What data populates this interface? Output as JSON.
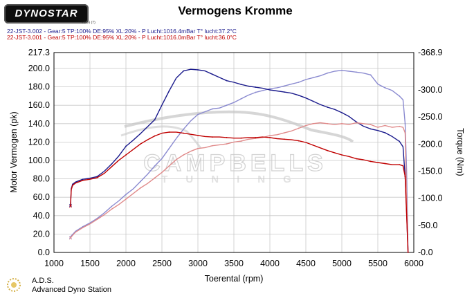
{
  "header": {
    "logo": "DYNOSTAR",
    "logo_sub": "v1.36 (7)",
    "title": "Vermogens Kromme",
    "run1": "22-JST-3.002 - Gear:5 TP:100% DE:95% XL:20%   - P Lucht:1016.4mBar T° lucht:37.2°C",
    "run2": "22-JST-3.001 - Gear:5 TP:100% DE:95% XL:20%   - P Lucht:1016.0mBar T° lucht:36.0°C"
  },
  "watermark": {
    "line1": "CAMPBELLS",
    "line2": "TUNING"
  },
  "footer": {
    "name": "A.D.S.",
    "desc": "Advanced Dyno Station"
  },
  "colors": {
    "run1": "#1a1a8c",
    "run2": "#c00000",
    "run1_light": "#8a8ad0",
    "run2_light": "#e08a8a",
    "grid": "#c8c8c8"
  },
  "chart_data": {
    "type": "line",
    "title": "Vermogens Kromme",
    "xlabel": "Toerental (rpm)",
    "ylabel": "Motor Vermogen (pk)",
    "y2label": "Torque (Nm)",
    "xlim": [
      1000,
      6000
    ],
    "ylim": [
      0,
      217.3
    ],
    "y2lim": [
      0,
      368.9
    ],
    "x_ticks": [
      "1000",
      "1500",
      "2000",
      "2500",
      "3000",
      "3500",
      "4000",
      "4500",
      "5000",
      "5500",
      "6000"
    ],
    "y_ticks": [
      "0.0",
      "20.0",
      "40.0",
      "60.0",
      "80.0",
      "100.0",
      "120.0",
      "140.0",
      "160.0",
      "180.0",
      "200.0",
      "217.3"
    ],
    "y2_ticks": [
      "0.0",
      "50.0",
      "100.0",
      "150.0",
      "200.0",
      "250.0",
      "300.0",
      "368.9"
    ],
    "grid": true,
    "series": [
      {
        "name": "22-JST-3.002",
        "kind": "power",
        "axis": "left",
        "x": [
          1230,
          1300,
          1400,
          1500,
          1600,
          1700,
          1800,
          1900,
          2000,
          2100,
          2200,
          2300,
          2400,
          2500,
          2600,
          2700,
          2800,
          2900,
          3000,
          3100,
          3200,
          3300,
          3400,
          3500,
          3600,
          3700,
          3800,
          3900,
          4000,
          4100,
          4200,
          4300,
          4400,
          4500,
          4600,
          4700,
          4800,
          4900,
          5000,
          5100,
          5200,
          5300,
          5400,
          5500,
          5600,
          5700,
          5800,
          5850,
          5880,
          5900,
          5920
        ],
        "y": [
          17,
          23,
          28,
          32,
          37,
          43,
          50,
          56,
          63,
          69,
          77,
          85,
          94,
          102,
          113,
          124,
          134,
          143,
          150,
          153,
          156,
          157,
          160,
          163,
          167,
          171,
          174,
          176,
          178,
          179,
          181,
          183,
          185,
          188,
          190,
          192,
          195,
          197,
          198,
          197,
          196,
          195,
          193,
          183,
          179,
          176,
          170,
          166,
          140,
          90,
          0
        ]
      },
      {
        "name": "22-JST-3.002",
        "kind": "torque",
        "axis": "right",
        "x": [
          1230,
          1240,
          1260,
          1300,
          1400,
          1500,
          1600,
          1700,
          1800,
          1900,
          2000,
          2100,
          2200,
          2300,
          2400,
          2500,
          2600,
          2700,
          2800,
          2900,
          3000,
          3100,
          3200,
          3300,
          3400,
          3500,
          3600,
          3700,
          3800,
          3900,
          4000,
          4100,
          4200,
          4300,
          4400,
          4500,
          4600,
          4700,
          4800,
          4900,
          5000,
          5100,
          5200,
          5300,
          5400,
          5500,
          5600,
          5700,
          5800,
          5850,
          5880,
          5900,
          5920
        ],
        "y": [
          88,
          118,
          126,
          130,
          135,
          137,
          140,
          150,
          163,
          178,
          196,
          207,
          219,
          232,
          245,
          272,
          298,
          322,
          335,
          338,
          337,
          335,
          329,
          323,
          317,
          314,
          310,
          307,
          305,
          303,
          300,
          298,
          296,
          294,
          290,
          285,
          279,
          273,
          268,
          264,
          258,
          251,
          241,
          233,
          228,
          225,
          221,
          214,
          205,
          195,
          140,
          75,
          0
        ]
      },
      {
        "name": "22-JST-3.001",
        "kind": "power",
        "axis": "left",
        "x": [
          1230,
          1300,
          1400,
          1500,
          1600,
          1700,
          1800,
          1900,
          2000,
          2100,
          2200,
          2300,
          2400,
          2500,
          2600,
          2700,
          2800,
          2900,
          3000,
          3100,
          3200,
          3300,
          3400,
          3500,
          3600,
          3700,
          3800,
          3900,
          4000,
          4100,
          4200,
          4300,
          4400,
          4500,
          4600,
          4700,
          4800,
          4900,
          5000,
          5100,
          5200,
          5300,
          5400,
          5500,
          5600,
          5700,
          5800,
          5850,
          5880,
          5900,
          5920
        ],
        "y": [
          16,
          22,
          27,
          31,
          36,
          41,
          47,
          52,
          58,
          64,
          70,
          75,
          81,
          87,
          94,
          101,
          106,
          110,
          113,
          114,
          116,
          117,
          118,
          120,
          121,
          123,
          124,
          125,
          127,
          128,
          130,
          132,
          135,
          138,
          140,
          141,
          140,
          139,
          140,
          139,
          141,
          140,
          139,
          136,
          138,
          136,
          137,
          136,
          130,
          60,
          0
        ]
      },
      {
        "name": "22-JST-3.001",
        "kind": "torque",
        "axis": "right",
        "x": [
          1230,
          1240,
          1260,
          1300,
          1400,
          1500,
          1600,
          1700,
          1800,
          1900,
          2000,
          2100,
          2200,
          2300,
          2400,
          2500,
          2600,
          2700,
          2800,
          2900,
          3000,
          3100,
          3200,
          3300,
          3400,
          3500,
          3600,
          3700,
          3800,
          3900,
          4000,
          4100,
          4200,
          4300,
          4400,
          4500,
          4600,
          4700,
          4800,
          4900,
          5000,
          5100,
          5200,
          5300,
          5400,
          5500,
          5600,
          5700,
          5800,
          5850,
          5880,
          5900,
          5920
        ],
        "y": [
          86,
          116,
          124,
          128,
          133,
          135,
          138,
          146,
          158,
          170,
          180,
          190,
          200,
          208,
          215,
          220,
          222,
          222,
          220,
          218,
          216,
          214,
          213,
          213,
          212,
          211,
          211,
          212,
          212,
          213,
          212,
          210,
          209,
          208,
          206,
          203,
          198,
          193,
          188,
          184,
          180,
          177,
          173,
          171,
          168,
          166,
          164,
          162,
          162,
          160,
          140,
          70,
          0
        ]
      }
    ]
  }
}
